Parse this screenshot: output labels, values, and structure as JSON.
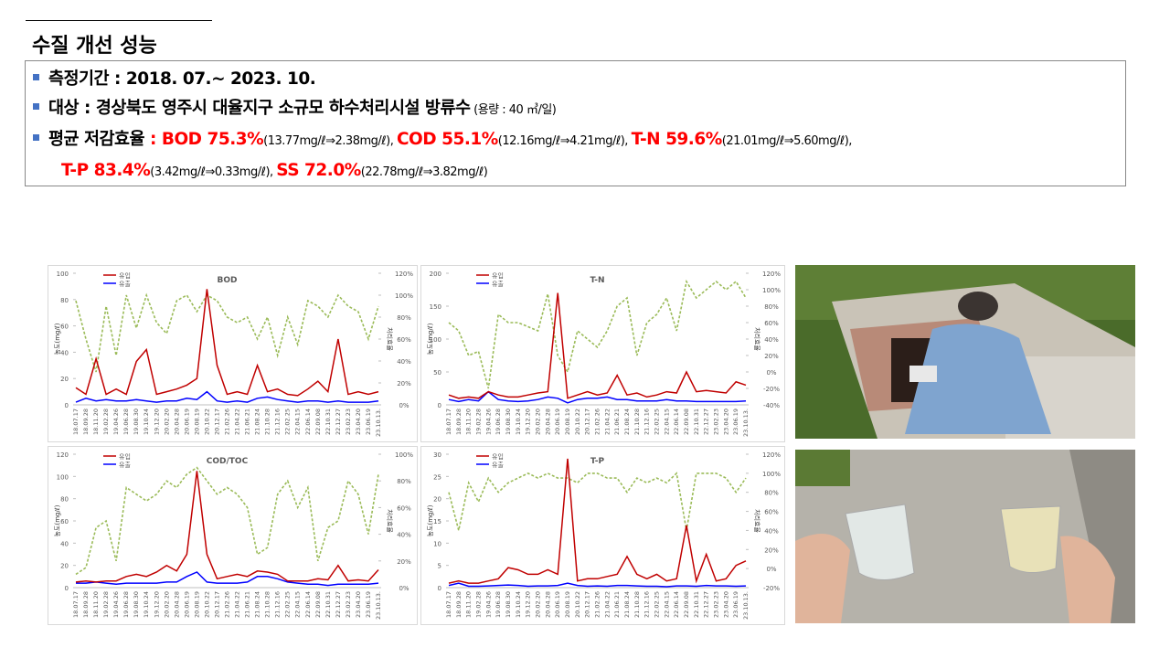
{
  "title": "수질 개선 성능",
  "bullets": [
    [
      {
        "text": "측정기간 : 2018. 07.~ 2023. 10.",
        "style": "plain"
      }
    ],
    [
      {
        "text": "대상 : 경상북도 영주시 대율지구 소규모 하수처리시설 방류수",
        "style": "plain"
      },
      {
        "text": " (용량 : 40 ㎥/일)",
        "style": "small"
      }
    ],
    [
      {
        "text": "평균 저감효율 ",
        "style": "plain"
      },
      {
        "text": ": BOD 75.3%",
        "style": "red"
      },
      {
        "text": "(13.77mg/ℓ⇒2.38mg/ℓ), ",
        "style": "small"
      },
      {
        "text": "COD 55.1%",
        "style": "red"
      },
      {
        "text": "(12.16mg/ℓ⇒4.21mg/ℓ), ",
        "style": "small"
      },
      {
        "text": "T-N 59.6%",
        "style": "red"
      },
      {
        "text": "(21.01mg/ℓ⇒5.60mg/ℓ),",
        "style": "small"
      }
    ],
    [
      {
        "text": "T-P 83.4%",
        "style": "red"
      },
      {
        "text": "(3.42mg/ℓ⇒0.33mg/ℓ), ",
        "style": "small"
      },
      {
        "text": "SS 72.0%",
        "style": "red"
      },
      {
        "text": "(22.78mg/ℓ⇒3.82mg/ℓ)",
        "style": "small"
      }
    ]
  ],
  "chart_data": [
    {
      "type": "line",
      "title": "BOD",
      "ylabel": "농도(mg/ℓ)",
      "y2label": "처리효율",
      "categories": [
        "18.07.17",
        "18.09.28",
        "18.11.20",
        "19.02.28",
        "19.04.26",
        "19.06.28",
        "19.08.30",
        "19.10.24",
        "19.12.20",
        "20.02.20",
        "20.04.28",
        "20.06.19",
        "20.08.19",
        "20.10.22",
        "20.12.17",
        "21.02.26",
        "21.04.22",
        "21.06.21",
        "21.08.24",
        "21.10.28",
        "21.12.16",
        "22.02.25",
        "22.04.15",
        "22.06.14",
        "22.09.08",
        "22.10.31",
        "22.12.27",
        "23.02.23",
        "23.04.20",
        "23.06.19",
        "23.10.13."
      ],
      "ylim": [
        0,
        100
      ],
      "yticks": [
        0,
        20,
        40,
        60,
        80,
        100
      ],
      "y2lim": [
        0,
        120
      ],
      "y2ticks": [
        {
          "value": 0,
          "label": "0%"
        },
        {
          "value": 20,
          "label": "20%"
        },
        {
          "value": 40,
          "label": "40%"
        },
        {
          "value": 60,
          "label": "60%"
        },
        {
          "value": 80,
          "label": "80%"
        },
        {
          "value": 100,
          "label": "100%"
        },
        {
          "value": 120,
          "label": "120%"
        }
      ],
      "series": [
        {
          "name": "유입",
          "color": "#c00000",
          "values": [
            13,
            8,
            35,
            8,
            12,
            8,
            33,
            42,
            8,
            10,
            12,
            15,
            20,
            88,
            30,
            8,
            10,
            8,
            30,
            10,
            12,
            8,
            7,
            12,
            18,
            10,
            50,
            8,
            10,
            8,
            10
          ]
        },
        {
          "name": "유출",
          "color": "#0000ff",
          "values": [
            2,
            5,
            3,
            4,
            3,
            3,
            4,
            3,
            2,
            3,
            3,
            5,
            4,
            10,
            3,
            2,
            3,
            2,
            5,
            6,
            4,
            3,
            2,
            3,
            3,
            2,
            3,
            2,
            2,
            2,
            3
          ]
        },
        {
          "color": "#9bbb59",
          "dashed": true,
          "axis": "y2",
          "values": [
            95,
            60,
            30,
            90,
            45,
            100,
            70,
            100,
            75,
            65,
            95,
            100,
            85,
            100,
            95,
            80,
            75,
            80,
            60,
            80,
            45,
            80,
            55,
            95,
            90,
            80,
            100,
            90,
            85,
            60,
            90
          ]
        }
      ]
    },
    {
      "type": "line",
      "title": "T-N",
      "ylabel": "농도(mg/ℓ)",
      "y2label": "처리효율",
      "categories": [
        "18.07.17",
        "18.09.28",
        "18.11.20",
        "19.02.28",
        "19.04.26",
        "19.06.28",
        "19.08.30",
        "19.10.24",
        "19.12.20",
        "20.02.20",
        "20.04.28",
        "20.06.19",
        "20.08.19",
        "20.10.22",
        "20.12.17",
        "21.02.26",
        "21.04.22",
        "21.06.21",
        "21.08.24",
        "21.10.28",
        "21.12.16",
        "22.02.25",
        "22.04.15",
        "22.06.14",
        "22.09.08",
        "22.10.31",
        "22.12.27",
        "23.02.23",
        "23.04.20",
        "23.06.19",
        "23.10.13."
      ],
      "ylim": [
        0,
        200
      ],
      "yticks": [
        0,
        50,
        100,
        150,
        200
      ],
      "y2lim": [
        -40,
        120
      ],
      "y2ticks": [
        {
          "value": -40,
          "label": "-40%"
        },
        {
          "value": -20,
          "label": "-20%"
        },
        {
          "value": 0,
          "label": "0%"
        },
        {
          "value": 20,
          "label": "20%"
        },
        {
          "value": 40,
          "label": "40%"
        },
        {
          "value": 60,
          "label": "60%"
        },
        {
          "value": 80,
          "label": "80%"
        },
        {
          "value": 100,
          "label": "100%"
        },
        {
          "value": 120,
          "label": "120%"
        }
      ],
      "series": [
        {
          "name": "유입",
          "color": "#c00000",
          "values": [
            15,
            10,
            12,
            10,
            20,
            15,
            12,
            12,
            15,
            18,
            20,
            170,
            10,
            15,
            20,
            15,
            18,
            45,
            15,
            18,
            12,
            15,
            20,
            18,
            50,
            20,
            22,
            20,
            18,
            35,
            30
          ]
        },
        {
          "name": "유출",
          "color": "#0000ff",
          "values": [
            8,
            5,
            8,
            6,
            20,
            8,
            6,
            5,
            6,
            8,
            12,
            10,
            3,
            8,
            10,
            10,
            12,
            8,
            8,
            6,
            6,
            6,
            8,
            6,
            6,
            5,
            5,
            5,
            5,
            5,
            6
          ]
        },
        {
          "color": "#9bbb59",
          "dashed": true,
          "axis": "y2",
          "values": [
            60,
            50,
            20,
            25,
            -20,
            70,
            60,
            60,
            55,
            50,
            95,
            20,
            0,
            50,
            40,
            30,
            50,
            80,
            90,
            20,
            60,
            70,
            90,
            50,
            110,
            90,
            100,
            110,
            100,
            110,
            90
          ]
        }
      ]
    },
    {
      "type": "line",
      "title": "COD/TOC",
      "ylabel": "농도(mg/ℓ)",
      "y2label": "처리효율",
      "categories": [
        "18.07.17",
        "18.09.28",
        "18.11.20",
        "19.02.28",
        "19.04.26",
        "19.06.28",
        "19.08.30",
        "19.10.24",
        "19.12.20",
        "20.02.20",
        "20.04.28",
        "20.06.19",
        "20.08.19",
        "20.10.22",
        "20.12.17",
        "21.02.26",
        "21.04.22",
        "21.06.21",
        "21.08.24",
        "21.10.28",
        "21.12.16",
        "22.02.25",
        "22.04.15",
        "22.06.14",
        "22.09.08",
        "22.10.31",
        "22.12.27",
        "23.02.23",
        "23.04.20",
        "23.06.19",
        "23.10.13."
      ],
      "ylim": [
        0,
        120
      ],
      "yticks": [
        0,
        20,
        40,
        60,
        80,
        100,
        120
      ],
      "y2lim": [
        0,
        100
      ],
      "y2ticks": [
        {
          "value": 0,
          "label": "0%"
        },
        {
          "value": 20,
          "label": "20%"
        },
        {
          "value": 40,
          "label": "40%"
        },
        {
          "value": 60,
          "label": "60%"
        },
        {
          "value": 80,
          "label": "80%"
        },
        {
          "value": 100,
          "label": "100%"
        }
      ],
      "series": [
        {
          "name": "유입",
          "color": "#c00000",
          "values": [
            5,
            6,
            5,
            6,
            6,
            10,
            12,
            10,
            14,
            20,
            15,
            30,
            105,
            30,
            8,
            10,
            12,
            10,
            15,
            14,
            12,
            6,
            6,
            6,
            8,
            7,
            20,
            6,
            7,
            6,
            16
          ]
        },
        {
          "name": "유출",
          "color": "#0000ff",
          "values": [
            4,
            4,
            5,
            4,
            3,
            4,
            4,
            4,
            4,
            5,
            5,
            10,
            14,
            5,
            4,
            4,
            4,
            5,
            10,
            10,
            8,
            5,
            4,
            3,
            3,
            2,
            3,
            3,
            3,
            3,
            4
          ]
        },
        {
          "color": "#9bbb59",
          "dashed": true,
          "axis": "y2",
          "values": [
            10,
            15,
            45,
            50,
            20,
            75,
            70,
            65,
            70,
            80,
            75,
            85,
            90,
            80,
            70,
            75,
            70,
            60,
            25,
            30,
            70,
            80,
            60,
            75,
            20,
            45,
            50,
            80,
            70,
            40,
            85
          ]
        }
      ]
    },
    {
      "type": "line",
      "title": "T-P",
      "ylabel": "농도(mg/ℓ)",
      "y2label": "처리효율",
      "categories": [
        "18.07.17",
        "18.09.28",
        "18.11.20",
        "19.02.28",
        "19.04.26",
        "19.06.28",
        "19.08.30",
        "19.10.24",
        "19.12.20",
        "20.02.20",
        "20.04.28",
        "20.06.19",
        "20.08.19",
        "20.10.22",
        "20.12.17",
        "21.02.26",
        "21.04.22",
        "21.06.21",
        "21.08.24",
        "21.10.28",
        "21.12.16",
        "22.02.25",
        "22.04.15",
        "22.06.14",
        "22.09.08",
        "22.10.31",
        "22.12.27",
        "23.02.23",
        "23.04.20",
        "23.06.19",
        "23.10.13."
      ],
      "ylim": [
        0,
        30
      ],
      "yticks": [
        0,
        5,
        10,
        15,
        20,
        25,
        30
      ],
      "y2lim": [
        -20,
        120
      ],
      "y2ticks": [
        {
          "value": -20,
          "label": "-20%"
        },
        {
          "value": 0,
          "label": "0%"
        },
        {
          "value": 20,
          "label": "20%"
        },
        {
          "value": 40,
          "label": "40%"
        },
        {
          "value": 60,
          "label": "60%"
        },
        {
          "value": 80,
          "label": "80%"
        },
        {
          "value": 100,
          "label": "100%"
        },
        {
          "value": 120,
          "label": "120%"
        }
      ],
      "series": [
        {
          "name": "유입",
          "color": "#c00000",
          "values": [
            1,
            1.5,
            1,
            1,
            1.5,
            2,
            4.5,
            4,
            3,
            3,
            4,
            3,
            29,
            1.5,
            2,
            2,
            2.5,
            3,
            7,
            3,
            2,
            3,
            1.5,
            2,
            14,
            1.5,
            7.5,
            1.5,
            2,
            5,
            6
          ]
        },
        {
          "name": "유출",
          "color": "#0000ff",
          "values": [
            0.5,
            1,
            0.3,
            0.3,
            0.4,
            0.5,
            0.6,
            0.5,
            0.3,
            0.4,
            0.4,
            0.5,
            1,
            0.5,
            0.3,
            0.4,
            0.3,
            0.5,
            0.5,
            0.4,
            0.3,
            0.3,
            0.2,
            0.4,
            0.4,
            0.3,
            0.5,
            0.4,
            0.4,
            0.3,
            0.4
          ]
        },
        {
          "color": "#9bbb59",
          "dashed": true,
          "axis": "y2",
          "values": [
            80,
            40,
            90,
            70,
            95,
            80,
            90,
            95,
            100,
            95,
            100,
            95,
            95,
            90,
            100,
            100,
            95,
            95,
            80,
            95,
            90,
            95,
            90,
            100,
            40,
            100,
            100,
            100,
            95,
            80,
            95
          ]
        }
      ]
    }
  ]
}
